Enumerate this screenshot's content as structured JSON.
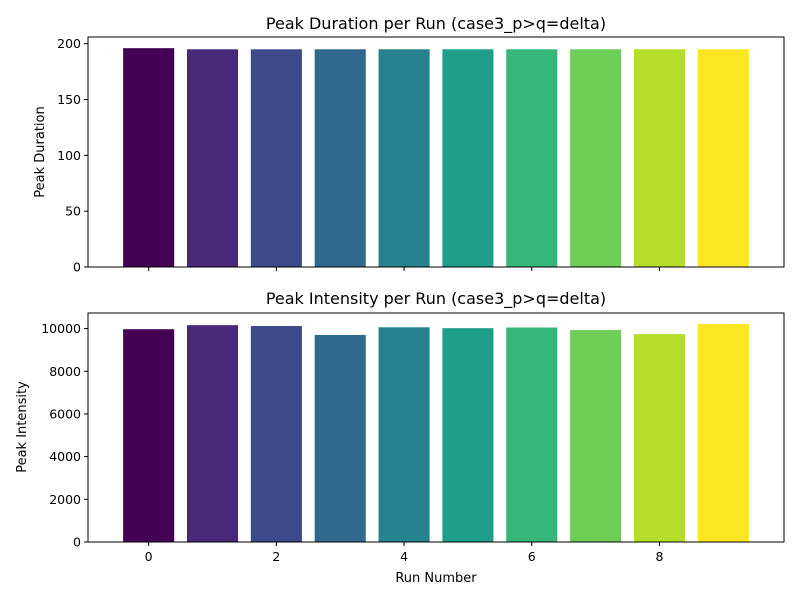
{
  "figure": {
    "background": "#ffffff",
    "xlabel": "Run Number"
  },
  "chart_data": [
    {
      "type": "bar",
      "title": "Peak Duration per Run (case3_p>q=delta)",
      "xlabel": "",
      "ylabel": "Peak Duration",
      "x": [
        0,
        1,
        2,
        3,
        4,
        5,
        6,
        7,
        8,
        9
      ],
      "values": [
        196,
        195,
        195,
        195,
        195,
        195,
        195,
        195,
        195,
        195
      ],
      "ylim": [
        0,
        206
      ],
      "xlim": [
        -0.95,
        9.95
      ],
      "yticks": [
        0,
        50,
        100,
        150,
        200
      ],
      "xticks": [
        0,
        2,
        4,
        6,
        8
      ],
      "xticklabels_visible": false,
      "grid": false,
      "colors": [
        "#440154",
        "#482878",
        "#3e4989",
        "#31688e",
        "#26828e",
        "#1f9e89",
        "#35b779",
        "#6ece58",
        "#b5de2b",
        "#fde725"
      ]
    },
    {
      "type": "bar",
      "title": "Peak Intensity per Run (case3_p>q=delta)",
      "xlabel": "Run Number",
      "ylabel": "Peak Intensity",
      "x": [
        0,
        1,
        2,
        3,
        4,
        5,
        6,
        7,
        8,
        9
      ],
      "values": [
        9970,
        10160,
        10120,
        9700,
        10060,
        10020,
        10050,
        9930,
        9740,
        10220
      ],
      "ylim": [
        0,
        10730
      ],
      "xlim": [
        -0.95,
        9.95
      ],
      "yticks": [
        0,
        2000,
        4000,
        6000,
        8000,
        10000
      ],
      "xticks": [
        0,
        2,
        4,
        6,
        8
      ],
      "xticklabels_visible": true,
      "grid": false,
      "colors": [
        "#440154",
        "#482878",
        "#3e4989",
        "#31688e",
        "#26828e",
        "#1f9e89",
        "#35b779",
        "#6ece58",
        "#b5de2b",
        "#fde725"
      ]
    }
  ]
}
